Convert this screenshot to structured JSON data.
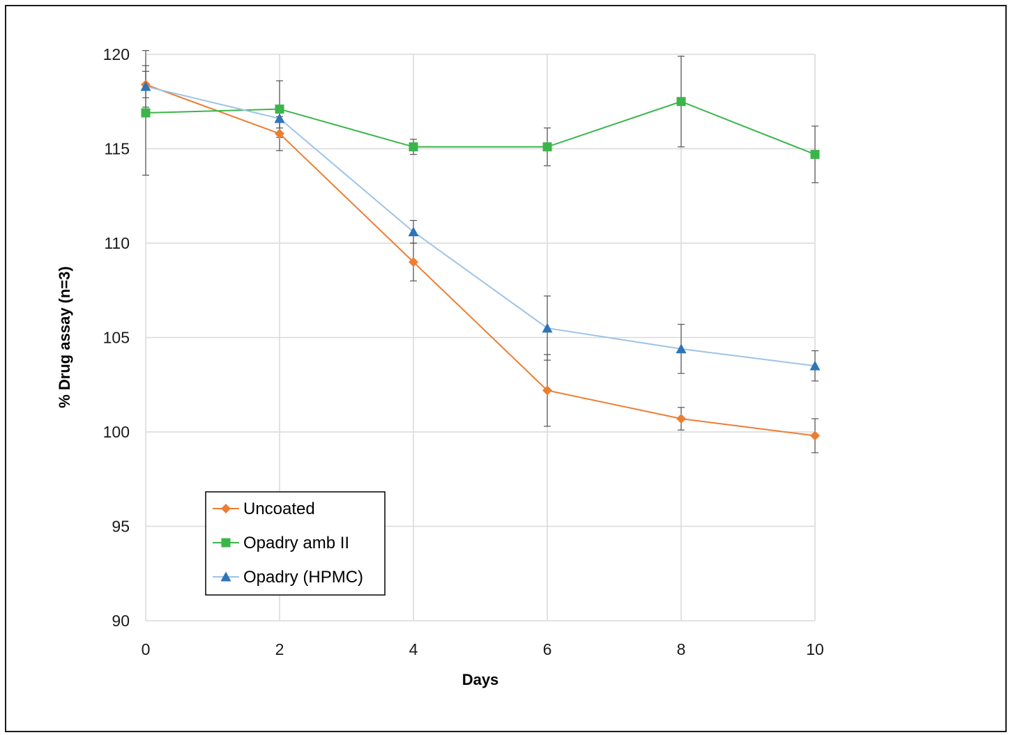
{
  "chart_data": {
    "type": "line",
    "title": "",
    "xlabel": "Days",
    "ylabel": "% Drug assay (n=3)",
    "x": [
      0,
      2,
      4,
      6,
      8,
      10
    ],
    "xlim": [
      0,
      10
    ],
    "ylim": [
      90,
      120
    ],
    "xticks": [
      "0",
      "2",
      "4",
      "6",
      "8",
      "10"
    ],
    "yticks": [
      "90",
      "95",
      "100",
      "105",
      "110",
      "115",
      "120"
    ],
    "grid": true,
    "legend_position": "bottom-left",
    "series": [
      {
        "name": "Uncoated",
        "color": "#ED7D31",
        "marker": "diamond",
        "values": [
          118.4,
          115.8,
          109.0,
          102.2,
          100.7,
          99.8
        ],
        "error": [
          0.7,
          0.9,
          1.0,
          1.9,
          0.6,
          0.9
        ]
      },
      {
        "name": "Opadry amb II",
        "color": "#3BB54A",
        "marker": "square",
        "values": [
          116.9,
          117.1,
          115.1,
          115.1,
          117.5,
          114.7
        ],
        "error": [
          3.3,
          1.5,
          0.4,
          1.0,
          2.4,
          1.5
        ]
      },
      {
        "name": "Opadry (HPMC)",
        "color": "#2E75B6",
        "line_color": "#9DC3E6",
        "marker": "triangle",
        "values": [
          118.3,
          116.6,
          110.6,
          105.5,
          104.4,
          103.5
        ],
        "error": [
          1.1,
          0.5,
          0.6,
          1.7,
          1.3,
          0.8
        ]
      }
    ]
  }
}
